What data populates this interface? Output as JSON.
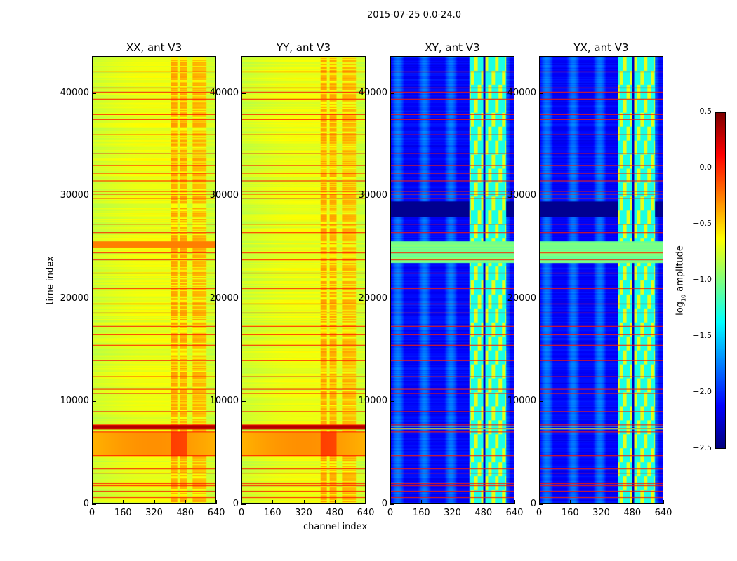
{
  "chart_data": {
    "type": "heatmap",
    "title": "2015-07-25 0.0-24.0",
    "xlabel": "channel index",
    "ylabel": "time index",
    "xlim": [
      0,
      640
    ],
    "ylim": [
      0,
      43600
    ],
    "xticks": [
      0,
      160,
      320,
      480,
      640
    ],
    "xtick_labels": [
      "0",
      "160",
      "320",
      "480",
      "640"
    ],
    "yticks": [
      0,
      10000,
      20000,
      30000,
      40000
    ],
    "ytick_labels": [
      "0",
      "10000",
      "20000",
      "30000",
      "40000"
    ],
    "panels": [
      {
        "title": "XX, ant V3",
        "kind": "auto"
      },
      {
        "title": "YY, ant V3",
        "kind": "auto"
      },
      {
        "title": "XY, ant V3",
        "kind": "cross"
      },
      {
        "title": "YX, ant V3",
        "kind": "cross"
      }
    ],
    "flagged_rows": [
      600,
      1200,
      1800,
      2000,
      3000,
      3400,
      4700,
      7000,
      7400,
      7700,
      9000,
      10800,
      11200,
      12400,
      14000,
      15500,
      16500,
      17300,
      18600,
      19500,
      21000,
      22500,
      23800,
      24500,
      26500,
      27300,
      29800,
      30200,
      30500,
      31500,
      32300,
      33000,
      34200,
      36000,
      37500,
      38000,
      39500,
      40200,
      40600,
      42200
    ],
    "colorbar": {
      "label": "log10 amplitude",
      "label_main": "log",
      "label_sub": "10",
      "label_rest": " amplitude",
      "range": [
        -2.5,
        0.5
      ],
      "ticks": [
        0.5,
        0.0,
        -0.5,
        -1.0,
        -1.5,
        -2.0,
        -2.5
      ],
      "tick_labels": [
        "0.5",
        "0.0",
        "−0.5",
        "−1.0",
        "−1.5",
        "−2.0",
        "−2.5"
      ],
      "colormap": "jet"
    }
  }
}
